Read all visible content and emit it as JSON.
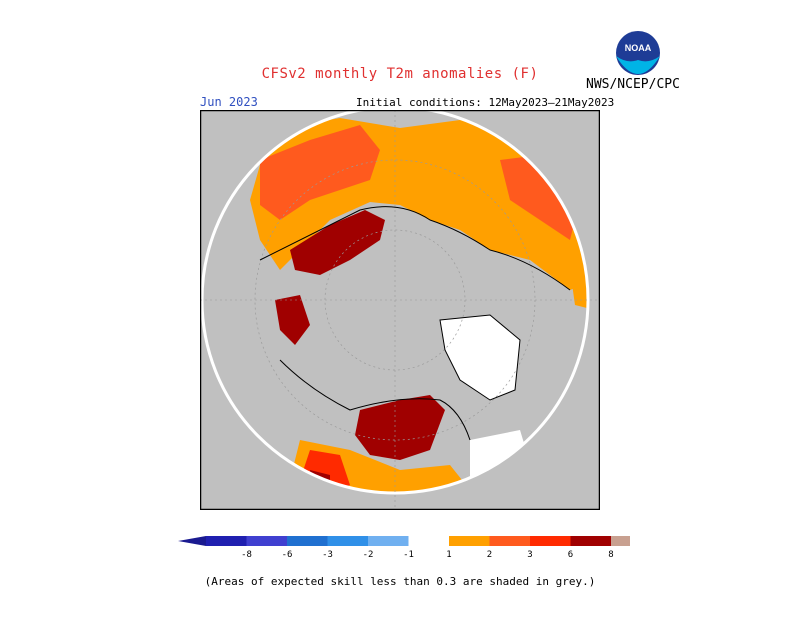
{
  "header": {
    "title": "CFSv2 monthly T2m anomalies (F)",
    "agency": "NWS/NCEP/CPC",
    "logo_text": "NOAA",
    "month": "Jun 2023",
    "initial_conditions": "Initial conditions: 12May2023–21May2023"
  },
  "colors": {
    "title": "#e03030",
    "month": "#3050c0",
    "land_grey": "#c0c0c0",
    "ocean": "#ffffff",
    "coast": "#000000"
  },
  "legend": {
    "bins": [
      {
        "label": "-8",
        "color": "#2020b0"
      },
      {
        "label": "-6",
        "color": "#4040d0"
      },
      {
        "label": "-3",
        "color": "#2070d0"
      },
      {
        "label": "-2",
        "color": "#3090e8"
      },
      {
        "label": "-1",
        "color": "#70b0f0"
      },
      {
        "label": "",
        "color": "#ffffff"
      },
      {
        "label": "1",
        "color": "#ffa000"
      },
      {
        "label": "2",
        "color": "#ff5a1e"
      },
      {
        "label": "3",
        "color": "#ff2a00"
      },
      {
        "label": "6",
        "color": "#a00000"
      },
      {
        "label": "8",
        "color": "#c8a090"
      }
    ],
    "low_arrow_color": "#1a1a90",
    "high_arrow_color": "#8a5a50"
  },
  "footnote": "(Areas of expected skill less than 0.3 are shaded in grey.)"
}
